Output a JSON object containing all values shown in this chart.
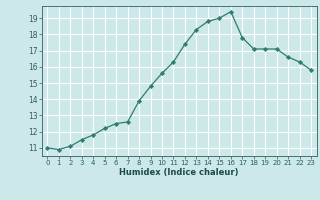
{
  "x": [
    0,
    1,
    2,
    3,
    4,
    5,
    6,
    7,
    8,
    9,
    10,
    11,
    12,
    13,
    14,
    15,
    16,
    17,
    18,
    19,
    20,
    21,
    22,
    23
  ],
  "y": [
    11.0,
    10.9,
    11.1,
    11.5,
    11.8,
    12.2,
    12.5,
    12.6,
    13.9,
    14.8,
    15.6,
    16.3,
    17.4,
    18.3,
    18.8,
    19.0,
    19.4,
    17.8,
    17.1,
    17.1,
    17.1,
    16.6,
    16.3,
    15.8
  ],
  "xlabel": "Humidex (Indice chaleur)",
  "xlim": [
    -0.5,
    23.5
  ],
  "ylim": [
    10.5,
    19.75
  ],
  "yticks": [
    11,
    12,
    13,
    14,
    15,
    16,
    17,
    18,
    19
  ],
  "xticks": [
    0,
    1,
    2,
    3,
    4,
    5,
    6,
    7,
    8,
    9,
    10,
    11,
    12,
    13,
    14,
    15,
    16,
    17,
    18,
    19,
    20,
    21,
    22,
    23
  ],
  "line_color": "#2e7d6e",
  "marker_color": "#2e7d6e",
  "bg_color": "#cce8e8",
  "grid_color": "#ffffff",
  "tick_label_color": "#2e5f5f",
  "label_color": "#1a4a4a"
}
